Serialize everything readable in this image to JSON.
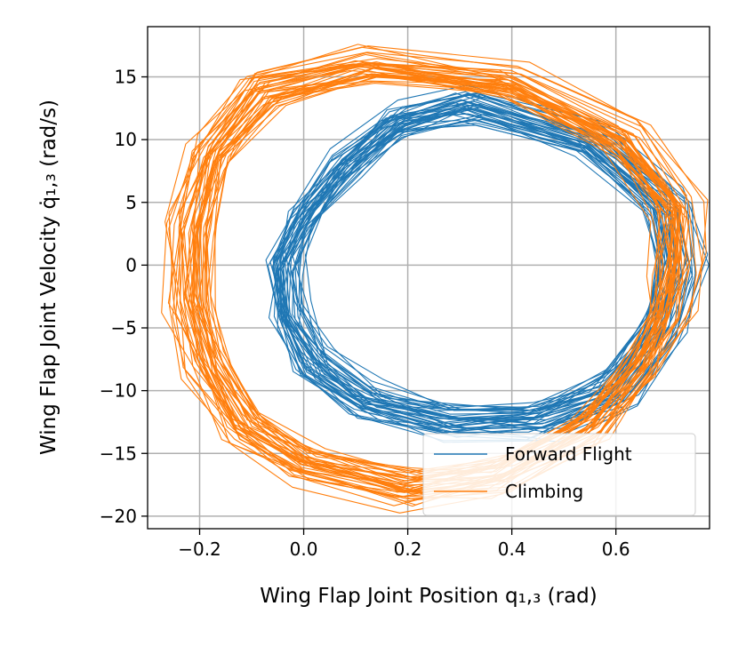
{
  "chart_data": {
    "type": "line",
    "title": "",
    "xlabel": "Wing Flap Joint Position q₁,₃ (rad)",
    "ylabel": "Wing Flap Joint Velocity q̇₁,₃ (rad/s)",
    "xlim": [
      -0.3,
      0.78
    ],
    "ylim": [
      -21,
      19
    ],
    "xticks": [
      -0.2,
      0.0,
      0.2,
      0.4,
      0.6
    ],
    "xtick_labels": [
      "−0.2",
      "0.0",
      "0.2",
      "0.4",
      "0.6"
    ],
    "yticks": [
      -20,
      -15,
      -10,
      -5,
      0,
      5,
      10,
      15
    ],
    "ytick_labels": [
      "−20",
      "−15",
      "−10",
      "−5",
      "0",
      "5",
      "10",
      "15"
    ],
    "grid": true,
    "legend_position": "lower-right",
    "series": [
      {
        "name": "Forward Flight",
        "color": "#1f77b4",
        "cycles": 40,
        "cycle": [
          [
            0.72,
            0
          ],
          [
            0.7,
            5
          ],
          [
            0.55,
            10
          ],
          [
            0.32,
            13
          ],
          [
            0.18,
            11.5
          ],
          [
            0.08,
            8
          ],
          [
            0.0,
            4
          ],
          [
            -0.04,
            0
          ],
          [
            -0.03,
            -4
          ],
          [
            0.02,
            -8
          ],
          [
            0.12,
            -11
          ],
          [
            0.28,
            -12.5
          ],
          [
            0.45,
            -12.5
          ],
          [
            0.6,
            -10
          ],
          [
            0.69,
            -5
          ],
          [
            0.72,
            0
          ]
        ]
      },
      {
        "name": "Climbing",
        "color": "#ff7f0e",
        "cycles": 40,
        "cycle": [
          [
            0.72,
            0
          ],
          [
            0.72,
            4.5
          ],
          [
            0.62,
            10
          ],
          [
            0.4,
            14.5
          ],
          [
            0.12,
            16
          ],
          [
            -0.08,
            14
          ],
          [
            -0.18,
            9
          ],
          [
            -0.22,
            3
          ],
          [
            -0.22,
            -3
          ],
          [
            -0.19,
            -8
          ],
          [
            -0.12,
            -13
          ],
          [
            0.0,
            -16
          ],
          [
            0.2,
            -18
          ],
          [
            0.38,
            -17
          ],
          [
            0.55,
            -13
          ],
          [
            0.65,
            -8
          ],
          [
            0.7,
            -4
          ],
          [
            0.72,
            0
          ]
        ]
      }
    ]
  }
}
